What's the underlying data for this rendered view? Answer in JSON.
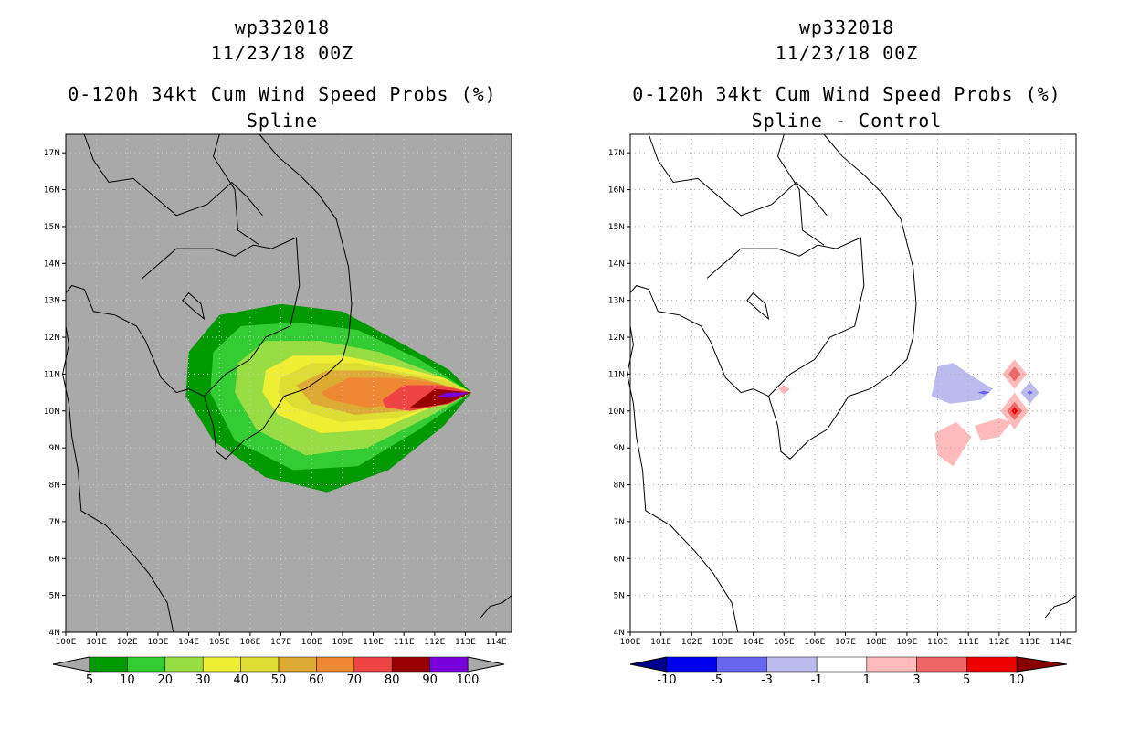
{
  "panels": [
    {
      "id": "left",
      "storm": "wp332018",
      "datetime": "11/23/18 00Z",
      "product": "0-120h 34kt Cum Wind Speed Probs (%)",
      "subtitle": "Spline",
      "background": "#a9a9a9",
      "colorbar": {
        "type": "sequential",
        "colors": [
          "#009900",
          "#33cc33",
          "#99dd44",
          "#eeee33",
          "#dddd33",
          "#ddaa33",
          "#ee8833",
          "#ee4444",
          "#990000",
          "#7700dd"
        ],
        "labels": [
          "5",
          "10",
          "20",
          "30",
          "40",
          "50",
          "60",
          "70",
          "80",
          "90",
          "100"
        ]
      }
    },
    {
      "id": "right",
      "storm": "wp332018",
      "datetime": "11/23/18 00Z",
      "product": "0-120h 34kt Cum Wind Speed Probs (%)",
      "subtitle": "Spline - Control",
      "background": "#ffffff",
      "colorbar": {
        "type": "diverging",
        "colors": [
          "#000088",
          "#0000ee",
          "#6666ee",
          "#bbbbee",
          "#ffffff",
          "#ffbbbb",
          "#ee6666",
          "#ee0000",
          "#880000"
        ],
        "labels": [
          "-10",
          "-5",
          "-3",
          "-1",
          "1",
          "3",
          "5",
          "10"
        ]
      }
    }
  ],
  "axes": {
    "lat_labels": [
      "4N",
      "5N",
      "6N",
      "7N",
      "8N",
      "9N",
      "10N",
      "11N",
      "12N",
      "13N",
      "14N",
      "15N",
      "16N",
      "17N"
    ],
    "lon_labels": [
      "100E",
      "101E",
      "102E",
      "103E",
      "104E",
      "105E",
      "106E",
      "107E",
      "108E",
      "109E",
      "110E",
      "111E",
      "112E",
      "113E",
      "114E"
    ],
    "lat_range": [
      4,
      17.5
    ],
    "lon_range": [
      100,
      114.5
    ]
  }
}
